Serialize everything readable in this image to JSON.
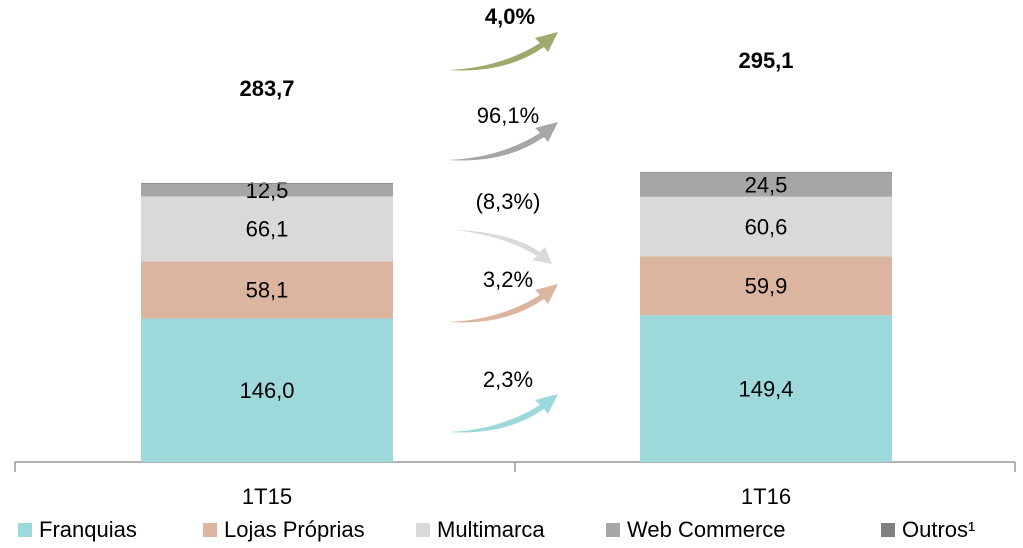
{
  "chart_data": {
    "type": "stacked_bar",
    "categories": [
      "1T15",
      "1T16"
    ],
    "series": [
      {
        "name": "Franquias",
        "color": "#9dd9da",
        "values": [
          146.0,
          149.4
        ],
        "value_labels": [
          "146,0",
          "149,4"
        ],
        "growth": "2,3%"
      },
      {
        "name": "Lojas Próprias",
        "color": "#dbb5a0",
        "values": [
          58.1,
          59.9
        ],
        "value_labels": [
          "58,1",
          "59,9"
        ],
        "growth": "3,2%"
      },
      {
        "name": "Multimarca",
        "color": "#d9d9d9",
        "values": [
          66.1,
          60.6
        ],
        "value_labels": [
          "66,1",
          "60,6"
        ],
        "growth": "(8,3%)"
      },
      {
        "name": "Web Commerce",
        "color": "#a6a6a6",
        "values": [
          12.5,
          24.5
        ],
        "value_labels": [
          "12,5",
          "24,5"
        ],
        "growth": "96,1%"
      },
      {
        "name": "Outros¹",
        "color": "#7f7f7f",
        "values": [
          1.0,
          0.7
        ]
      }
    ],
    "totals": {
      "values": [
        283.7,
        295.1
      ],
      "value_labels": [
        "283,7",
        "295,1"
      ]
    },
    "total_growth": {
      "label": "4,0%",
      "color": "#9caa6c"
    }
  }
}
